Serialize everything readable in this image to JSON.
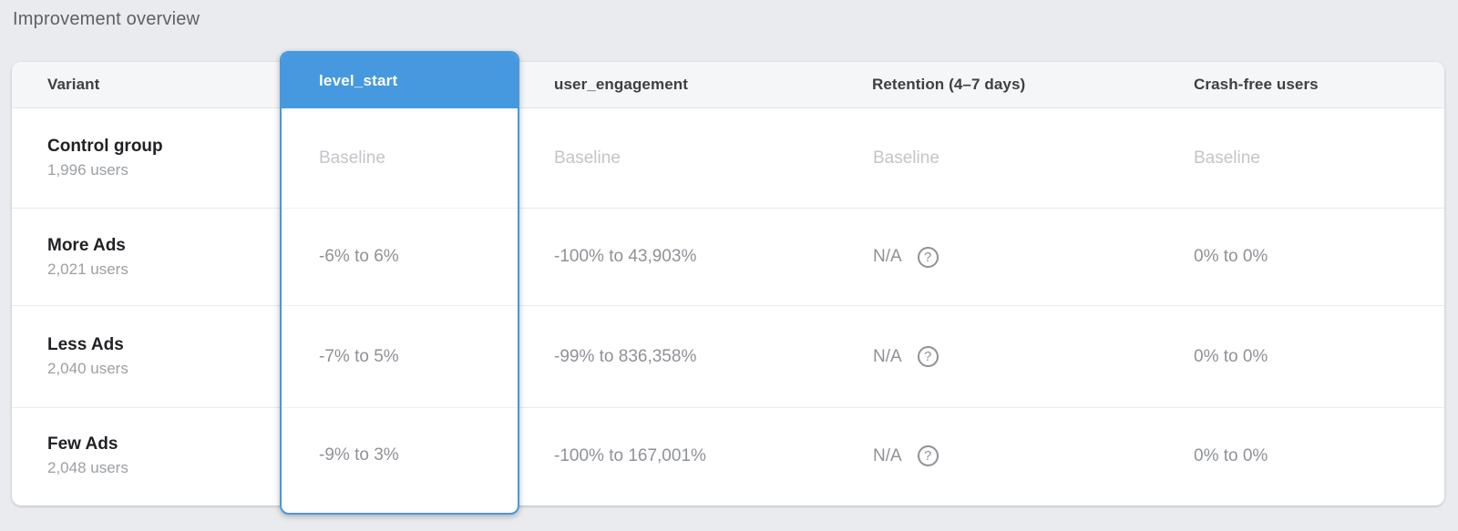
{
  "page": {
    "title": "Improvement overview"
  },
  "colors": {
    "accent_blue": "#4699de",
    "page_background": "#e9ebee"
  },
  "table": {
    "columns": [
      {
        "key": "variant",
        "label": "Variant"
      },
      {
        "key": "level_start",
        "label": "level_start",
        "selected": true
      },
      {
        "key": "user_engagement",
        "label": "user_engagement"
      },
      {
        "key": "retention",
        "label": "Retention (4–7 days)"
      },
      {
        "key": "crash_free",
        "label": "Crash-free users"
      }
    ],
    "help_icon_glyph": "?",
    "rows": [
      {
        "variant": "Control group",
        "users": "1,996 users",
        "level_start": "Baseline",
        "user_engagement": "Baseline",
        "retention": "Baseline",
        "crash_free": "Baseline",
        "is_baseline": true
      },
      {
        "variant": "More Ads",
        "users": "2,021 users",
        "level_start": "-6% to 6%",
        "user_engagement": "-100% to 43,903%",
        "retention": "N/A",
        "crash_free": "0% to 0%",
        "is_baseline": false
      },
      {
        "variant": "Less Ads",
        "users": "2,040 users",
        "level_start": "-7% to 5%",
        "user_engagement": "-99% to 836,358%",
        "retention": "N/A",
        "crash_free": "0% to 0%",
        "is_baseline": false
      },
      {
        "variant": "Few Ads",
        "users": "2,048 users",
        "level_start": "-9% to 3%",
        "user_engagement": "-100% to 167,001%",
        "retention": "N/A",
        "crash_free": "0% to 0%",
        "is_baseline": false
      }
    ]
  }
}
